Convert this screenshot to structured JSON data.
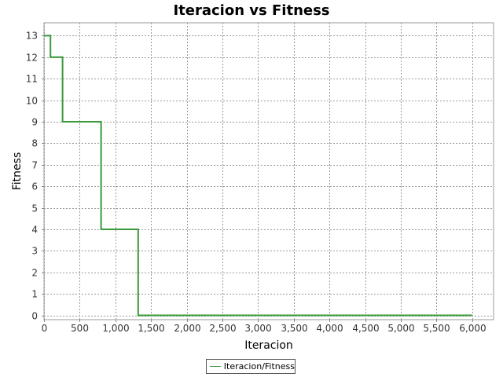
{
  "chart_data": {
    "type": "line",
    "title": "Iteracion vs Fitness",
    "xlabel": "Iteracion",
    "ylabel": "Fitness",
    "xlim": [
      0,
      6300
    ],
    "ylim": [
      -0.2,
      13.6
    ],
    "xticks": [
      0,
      500,
      1000,
      1500,
      2000,
      2500,
      3000,
      3500,
      4000,
      4500,
      5000,
      5500,
      6000
    ],
    "xtick_labels": [
      "0",
      "500",
      "1,000",
      "1,500",
      "2,000",
      "2,500",
      "3,000",
      "3,500",
      "4,000",
      "4,500",
      "5,000",
      "5,500",
      "6,000"
    ],
    "yticks": [
      0,
      1,
      2,
      3,
      4,
      5,
      6,
      7,
      8,
      9,
      10,
      11,
      12,
      13
    ],
    "ytick_labels": [
      "0",
      "1",
      "2",
      "3",
      "4",
      "5",
      "6",
      "7",
      "8",
      "9",
      "10",
      "11",
      "12",
      "13"
    ],
    "grid": true,
    "legend": "bottom-center",
    "series": [
      {
        "name": "Iteracion/Fitness",
        "color": "#3a9a3a",
        "step": true,
        "x": [
          0,
          90,
          260,
          800,
          1320,
          6000
        ],
        "y": [
          13,
          12,
          9,
          4,
          0,
          0
        ]
      }
    ]
  }
}
